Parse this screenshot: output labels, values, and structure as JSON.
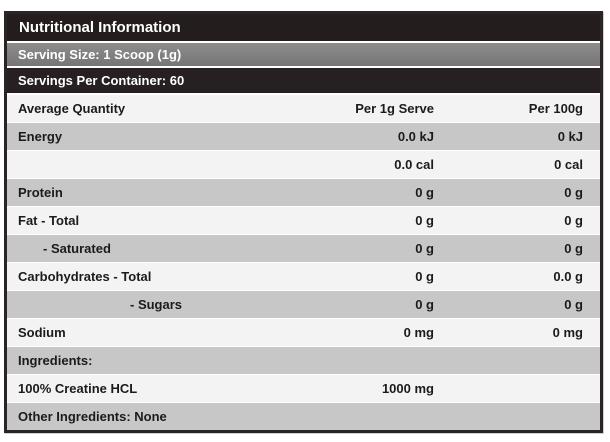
{
  "label": {
    "title": "Nutritional Information",
    "serving_size": "Serving Size: 1 Scoop (1g)",
    "servings_per_container": "Servings Per Container: 60"
  },
  "table": {
    "headers": {
      "quantity": "Average Quantity",
      "per_serve": "Per 1g Serve",
      "per_100g": "Per 100g"
    },
    "rows": [
      {
        "label": "Energy",
        "per_serve": "0.0 kJ",
        "per_100g": "0 kJ"
      },
      {
        "label": "",
        "per_serve": "0.0 cal",
        "per_100g": "0 cal"
      },
      {
        "label": "Protein",
        "per_serve": "0 g",
        "per_100g": "0 g"
      },
      {
        "label": "Fat - Total",
        "per_serve": "0 g",
        "per_100g": "0 g"
      },
      {
        "label": "- Saturated",
        "per_serve": "0 g",
        "per_100g": "0 g"
      },
      {
        "label": "Carbohydrates - Total",
        "per_serve": "0 g",
        "per_100g": "0.0 g"
      },
      {
        "label": "- Sugars",
        "per_serve": "0 g",
        "per_100g": "0 g"
      },
      {
        "label": "Sodium",
        "per_serve": "0 mg",
        "per_100g": "0 mg"
      },
      {
        "label": "Ingredients:",
        "per_serve": "",
        "per_100g": ""
      },
      {
        "label": "100% Creatine HCL",
        "per_serve": "1000 mg",
        "per_100g": ""
      },
      {
        "label": "Other Ingredients: None",
        "per_serve": "",
        "per_100g": ""
      }
    ]
  },
  "colors": {
    "title_bar": "#231e1d",
    "serving_bar": "#7f7f7f",
    "container_bar": "#262022",
    "row_shade": "#c7c7c7",
    "row_light": "#f3f3f3",
    "border": "#2a2425",
    "text_dark": "#1b1b1b",
    "text_light": "#ffffff"
  }
}
